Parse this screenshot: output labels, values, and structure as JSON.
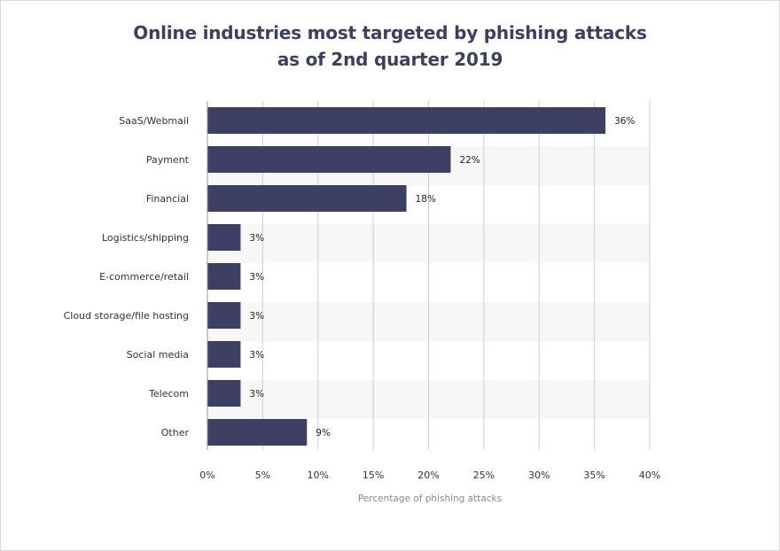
{
  "chart_data": {
    "type": "bar",
    "orientation": "horizontal",
    "title": "Online industries most targeted by phishing attacks",
    "subtitle": "as of 2nd quarter 2019",
    "xlabel": "Percentage of phishing attacks",
    "ylabel": "",
    "categories": [
      "SaaS/Webmail",
      "Payment",
      "Financial",
      "Logistics/shipping",
      "E-commerce/retail",
      "Cloud storage/file hosting",
      "Social media",
      "Telecom",
      "Other"
    ],
    "values": [
      36,
      22,
      18,
      3,
      3,
      3,
      3,
      3,
      9
    ],
    "value_labels": [
      "36%",
      "22%",
      "18%",
      "3%",
      "3%",
      "3%",
      "3%",
      "3%",
      "9%"
    ],
    "xlim": [
      0,
      40
    ],
    "xticks": [
      0,
      5,
      10,
      15,
      20,
      25,
      30,
      35,
      40
    ],
    "xtick_labels": [
      "0%",
      "5%",
      "10%",
      "15%",
      "20%",
      "25%",
      "30%",
      "35%",
      "40%"
    ],
    "grid": true,
    "bar_color": "#3d3f64",
    "title_color": "#3b3f63"
  }
}
